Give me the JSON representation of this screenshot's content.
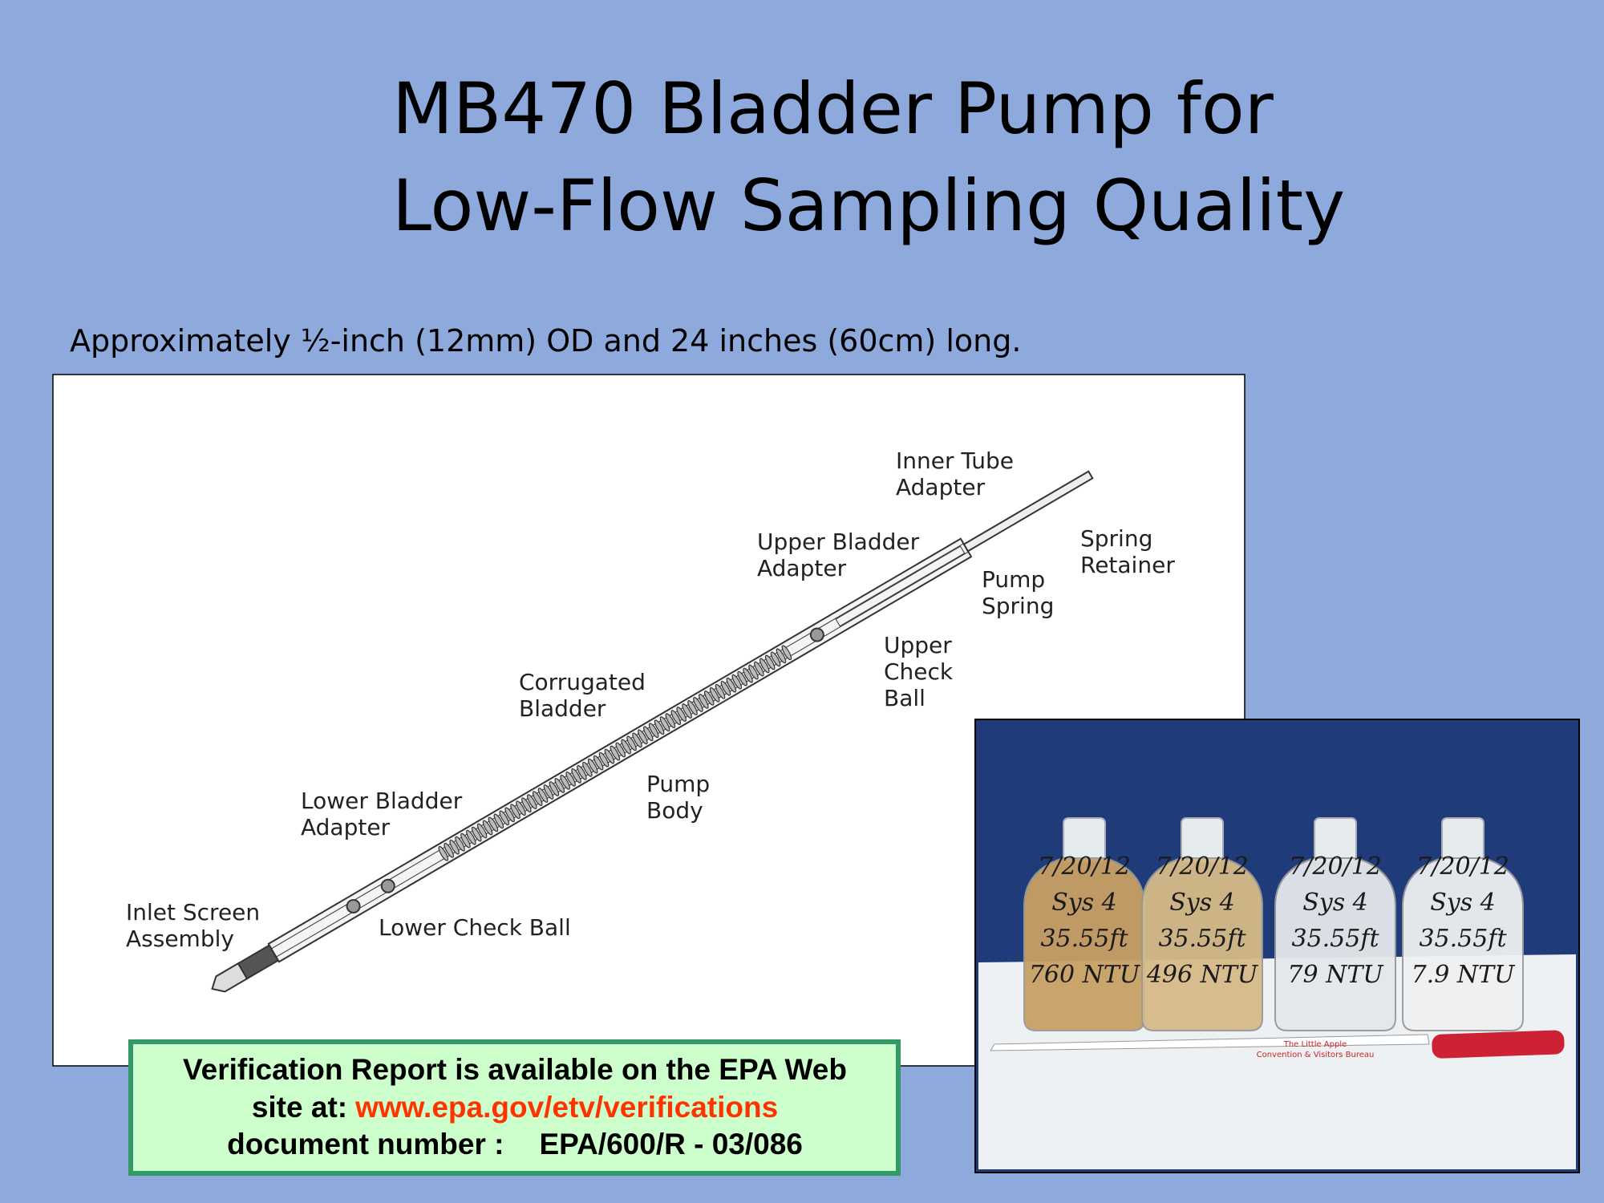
{
  "slide": {
    "title": [
      "MB470 Bladder Pump for",
      "Low-Flow Sampling Quality"
    ],
    "subtitle": "Approximately ½-inch (12mm) OD and 24 inches (60cm) long.",
    "diagram": {
      "labels": [
        [
          "Inner Tube",
          "Adapter"
        ],
        [
          "Spring",
          "Retainer"
        ],
        [
          "Upper Bladder",
          "Adapter"
        ],
        [
          "Pump",
          "Spring"
        ],
        [
          "Upper",
          "Check",
          "Ball"
        ],
        [
          "Corrugated",
          "Bladder"
        ],
        [
          "Pump",
          "Body"
        ],
        [
          "Lower Bladder",
          "Adapter"
        ],
        [
          "Inlet Screen",
          "Assembly"
        ],
        [
          "Lower Check Ball"
        ]
      ]
    },
    "photo": {
      "bottles": [
        [
          "7/20/12",
          "Sys 4",
          "35.55ft",
          "760 NTU"
        ],
        [
          "7/20/12",
          "Sys 4",
          "35.55ft",
          "496 NTU"
        ],
        [
          "7/20/12",
          "Sys 4",
          "35.55ft",
          "79 NTU"
        ],
        [
          "7/20/12",
          "Sys 4",
          "35.55ft",
          "7.9 NTU"
        ]
      ],
      "pen": [
        "The Little Apple",
        "Convention & Visitors Bureau"
      ]
    },
    "note": {
      "line1": "Verification Report is available on the EPA Web",
      "line2": "site at:",
      "link": "www.epa.gov/etv/verifications",
      "line3a": "document number :",
      "line3b": "EPA/600/R - 03/086"
    }
  }
}
